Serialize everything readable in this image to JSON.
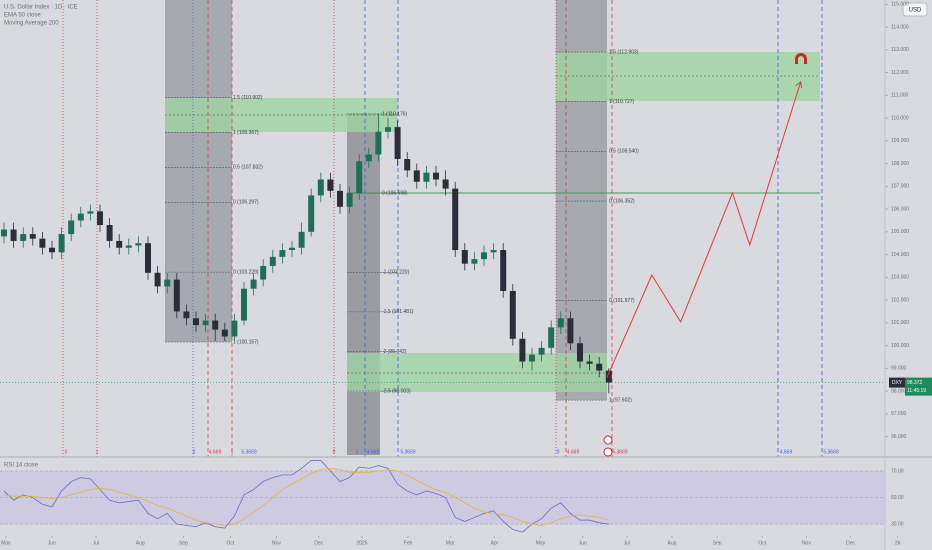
{
  "header": {
    "lines": [
      "U.S. Dollar Index · 1D · ICE",
      "EMA 50 close",
      "Moving Average 200"
    ]
  },
  "currency_button": "USD",
  "chart_data": [
    {
      "type": "candlestick",
      "open": [
        104.8,
        105.1,
        104.6,
        104.9,
        104.7,
        104.3,
        104.1,
        104.9,
        105.5,
        105.8,
        105.9,
        105.3,
        104.6,
        104.3,
        104.4,
        104.5,
        103.2,
        102.6,
        102.9,
        101.5,
        101.2,
        100.9,
        101.1,
        100.7,
        100.4,
        101.1,
        102.5,
        102.9,
        103.5,
        103.9,
        104.2,
        104.3,
        105.0,
        106.6,
        107.3,
        106.8,
        106.1,
        106.7,
        108.1,
        108.4,
        109.4,
        109.6,
        108.2,
        107.7,
        107.2,
        107.6,
        107.3,
        106.9,
        104.2,
        103.6,
        103.8,
        104.1,
        104.2,
        102.4,
        100.3,
        99.3,
        99.6,
        99.9,
        100.8,
        101.2,
        100.1,
        99.3,
        99.2,
        98.9
      ],
      "high": [
        105.4,
        105.4,
        105.2,
        105.2,
        105.0,
        104.6,
        105.2,
        105.8,
        106.1,
        106.2,
        106.2,
        105.6,
        104.9,
        104.7,
        104.8,
        104.8,
        103.5,
        103.2,
        103.2,
        101.8,
        101.5,
        101.4,
        101.4,
        101.0,
        101.4,
        102.8,
        103.2,
        103.8,
        104.2,
        104.5,
        104.6,
        105.4,
        106.9,
        107.6,
        107.6,
        107.1,
        107.0,
        108.4,
        108.7,
        110.2,
        110.0,
        109.9,
        108.5,
        108.0,
        107.9,
        107.9,
        107.7,
        107.2,
        104.5,
        104.1,
        104.4,
        104.5,
        104.5,
        102.7,
        100.6,
        99.9,
        100.2,
        101.1,
        101.5,
        101.5,
        100.4,
        99.6,
        99.5,
        99.0
      ],
      "low": [
        104.5,
        104.3,
        104.3,
        104.4,
        104.0,
        103.8,
        103.8,
        104.6,
        105.2,
        105.5,
        105.0,
        104.3,
        104.0,
        104.0,
        104.1,
        102.9,
        102.3,
        102.3,
        101.2,
        100.9,
        100.6,
        100.6,
        100.2,
        100.2,
        100.2,
        100.9,
        102.2,
        102.6,
        103.2,
        103.6,
        103.9,
        104.0,
        104.8,
        106.3,
        106.5,
        105.8,
        105.8,
        106.4,
        107.8,
        108.1,
        109.1,
        107.9,
        107.4,
        106.9,
        106.9,
        107.0,
        106.6,
        103.9,
        103.3,
        103.3,
        103.5,
        103.8,
        102.1,
        100.0,
        99.0,
        98.9,
        99.3,
        99.6,
        100.5,
        99.8,
        99.0,
        98.9,
        98.6,
        97.9
      ],
      "close": [
        105.1,
        104.6,
        104.9,
        104.7,
        104.3,
        104.1,
        104.9,
        105.5,
        105.8,
        105.9,
        105.3,
        104.6,
        104.3,
        104.4,
        104.5,
        103.2,
        102.6,
        102.9,
        101.5,
        101.2,
        100.9,
        101.1,
        100.7,
        100.4,
        101.1,
        102.5,
        102.9,
        103.5,
        103.9,
        104.2,
        104.3,
        105.0,
        106.6,
        107.3,
        106.8,
        106.1,
        106.7,
        108.1,
        108.4,
        109.4,
        109.6,
        108.2,
        107.7,
        107.2,
        107.6,
        107.3,
        106.9,
        104.2,
        103.6,
        103.8,
        104.1,
        104.2,
        102.4,
        100.3,
        99.3,
        99.6,
        99.9,
        100.8,
        101.2,
        100.1,
        99.3,
        99.2,
        98.9,
        98.372
      ],
      "up_color": "#1f6f56",
      "down_color": "#2a2e39",
      "xlim": [
        0,
        95
      ],
      "xticks": [
        {
          "value": 0.6,
          "label": "May"
        },
        {
          "value": 5.4,
          "label": "Jun"
        },
        {
          "value": 10.0,
          "label": "Jul"
        },
        {
          "value": 14.6,
          "label": "Aug"
        },
        {
          "value": 19.1,
          "label": "Sep"
        },
        {
          "value": 24.0,
          "label": "Oct"
        },
        {
          "value": 28.8,
          "label": "Nov"
        },
        {
          "value": 33.2,
          "label": "Dec"
        },
        {
          "value": 37.7,
          "label": "2025"
        },
        {
          "value": 42.5,
          "label": "Feb"
        },
        {
          "value": 46.9,
          "label": "Mar"
        },
        {
          "value": 51.5,
          "label": "Apr"
        },
        {
          "value": 56.3,
          "label": "May"
        },
        {
          "value": 60.7,
          "label": "Jun"
        },
        {
          "value": 65.3,
          "label": "Jul"
        },
        {
          "value": 70.0,
          "label": "Aug"
        },
        {
          "value": 74.7,
          "label": "Sep"
        },
        {
          "value": 79.4,
          "label": "Oct"
        },
        {
          "value": 84.0,
          "label": "Nov"
        },
        {
          "value": 88.6,
          "label": "Dec"
        },
        {
          "value": 93.5,
          "label": "26"
        }
      ],
      "ylim": [
        95.19,
        115.19
      ],
      "yticks": [
        {
          "value": 115,
          "label": "115.000"
        },
        {
          "value": 114,
          "label": "114.000"
        },
        {
          "value": 113,
          "label": "113.000"
        },
        {
          "value": 112,
          "label": "112.000"
        },
        {
          "value": 111,
          "label": "111.000"
        },
        {
          "value": 110,
          "label": "110.000"
        },
        {
          "value": 109,
          "label": "109.000"
        },
        {
          "value": 108,
          "label": "108.000"
        },
        {
          "value": 107,
          "label": "107.000"
        },
        {
          "value": 106,
          "label": "106.000"
        },
        {
          "value": 105,
          "label": "105.000"
        },
        {
          "value": 104,
          "label": "104.000"
        },
        {
          "value": 103,
          "label": "103.000"
        },
        {
          "value": 102,
          "label": "102.000"
        },
        {
          "value": 101,
          "label": "101.000"
        },
        {
          "value": 100,
          "label": "100.000"
        },
        {
          "value": 99,
          "label": "99.000"
        },
        {
          "value": 98,
          "label": "98.000"
        },
        {
          "value": 97,
          "label": "97.000"
        },
        {
          "value": 96,
          "label": "96.000"
        }
      ],
      "last_price": {
        "symbol": "DXY",
        "value": 98.372,
        "countdown": "11:45:19",
        "color": "#1f8a5e"
      },
      "projection": {
        "color": "#e53935",
        "x": [
          63.2,
          67.9,
          70.9,
          76.3,
          78.1,
          83.4
        ],
        "values": [
          98.57,
          103.1,
          101.04,
          106.71,
          104.42,
          111.59
        ]
      },
      "fib_groups": [
        [
          {
            "label": "1.5 (110.902)",
            "value": 110.902
          },
          {
            "label": "1 (109.367)",
            "value": 109.367
          },
          {
            "label": "0.5 (107.832)",
            "value": 107.832
          },
          {
            "label": "0 (106.297)",
            "value": 106.297
          }
        ],
        [
          {
            "label": "0 (103.229)",
            "value": 103.229
          },
          {
            "label": "1 (100.157)",
            "value": 100.157
          }
        ],
        [
          {
            "label": "1 (110.176)",
            "value": 110.176
          },
          {
            "label": "0 (106.698)",
            "value": 106.698
          },
          {
            "label": "-1 (103.220)",
            "value": 103.22
          },
          {
            "label": "-1.5 (101.481)",
            "value": 101.481
          },
          {
            "label": "-2 (99.742)",
            "value": 99.742
          },
          {
            "label": "-2.5 (98.003)",
            "value": 98.003
          }
        ],
        [
          {
            "label": "1.5 (112.903)",
            "value": 112.903
          },
          {
            "label": "1 (110.727)",
            "value": 110.727
          },
          {
            "label": "0.5 (108.540)",
            "value": 108.54
          },
          {
            "label": "0 (106.352)",
            "value": 106.352
          },
          {
            "label": "0 (101.977)",
            "value": 101.977
          },
          {
            "label": "1 (97.602)",
            "value": 97.602
          }
        ]
      ],
      "cycle_labels": [
        "0",
        "1",
        "0",
        "4.669",
        "1",
        "5.3669",
        "0",
        "1",
        "4.669",
        "5.3669",
        "0",
        "4.669",
        "5.3669",
        "4.669",
        "5.3669"
      ]
    },
    {
      "type": "line",
      "title": "RSI 14 close",
      "series": [
        {
          "color": "#5c5fc4",
          "values": [
            55,
            48,
            52,
            50,
            45,
            43,
            55,
            62,
            65,
            64,
            56,
            48,
            46,
            47,
            48,
            38,
            34,
            38,
            30,
            29,
            28,
            31,
            28,
            27,
            36,
            52,
            56,
            62,
            65,
            67,
            67,
            72,
            78,
            78,
            70,
            62,
            65,
            73,
            72,
            74,
            72,
            60,
            55,
            52,
            55,
            53,
            50,
            35,
            32,
            35,
            38,
            40,
            32,
            26,
            24,
            30,
            34,
            42,
            46,
            38,
            33,
            33,
            31,
            30
          ]
        },
        {
          "color": "#e0b73a",
          "values": [
            52,
            51,
            51,
            51,
            50,
            49,
            50,
            52,
            54,
            56,
            57,
            56,
            54,
            52,
            50,
            47,
            44,
            42,
            39,
            36,
            33,
            31,
            30,
            29,
            30,
            34,
            39,
            44,
            50,
            56,
            60,
            64,
            68,
            71,
            72,
            71,
            69,
            69,
            69,
            70,
            71,
            70,
            67,
            63,
            59,
            56,
            54,
            50,
            46,
            42,
            39,
            38,
            37,
            35,
            32,
            30,
            29,
            31,
            34,
            36,
            37,
            36,
            35,
            33
          ]
        }
      ],
      "ylim": [
        12,
        76
      ],
      "yticks": [
        {
          "value": 70,
          "label": "70.00"
        },
        {
          "value": 50,
          "label": "50.00"
        },
        {
          "value": 30,
          "label": "30.00"
        }
      ]
    }
  ]
}
